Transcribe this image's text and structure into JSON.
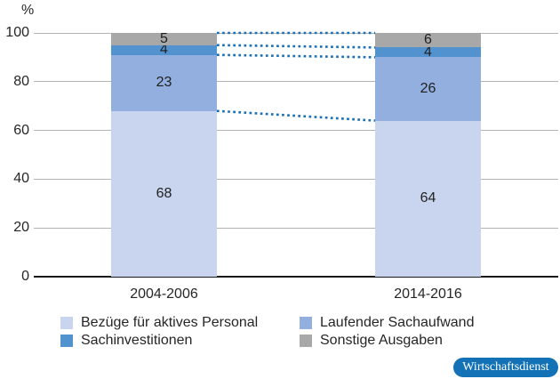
{
  "chart_data": {
    "type": "bar",
    "stacked": true,
    "title": "",
    "ylabel": "%",
    "xlabel": "",
    "ylim": [
      0,
      100
    ],
    "yticks": [
      0,
      20,
      40,
      60,
      80,
      100
    ],
    "grid": true,
    "legend_position": "bottom",
    "categories": [
      "2004-2006",
      "2014-2016"
    ],
    "series": [
      {
        "name": "Bezüge für aktives Personal",
        "color": "#c9d5ee",
        "values": [
          68,
          64
        ]
      },
      {
        "name": "Laufender Sachaufwand",
        "color": "#92afdf",
        "values": [
          23,
          26
        ]
      },
      {
        "name": "Sachinvestitionen",
        "color": "#5292cf",
        "values": [
          4,
          4
        ]
      },
      {
        "name": "Sonstige Ausgaben",
        "color": "#a8a8a8",
        "values": [
          5,
          6
        ]
      }
    ],
    "connector_lines": {
      "style": "dotted",
      "color": "#1b6fb5"
    }
  },
  "axis_colors": {
    "gridline": "#b3b3b3",
    "zeroline": "#1a1a1a",
    "text": "#262626"
  },
  "badge": {
    "label": "Wirtschaftsdienst",
    "background": "#1272b5",
    "text_color": "#ffffff"
  }
}
